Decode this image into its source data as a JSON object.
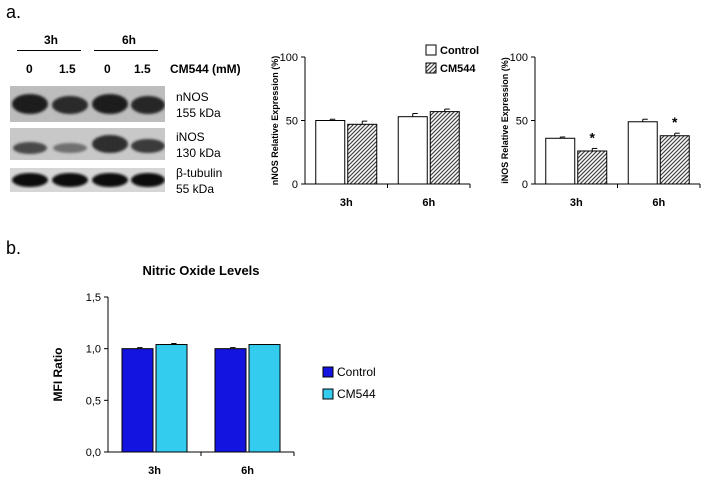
{
  "panel_a": {
    "label": "a.",
    "blot": {
      "time_groups": [
        "3h",
        "6h"
      ],
      "doses": [
        "0",
        "1.5",
        "0",
        "1.5"
      ],
      "treatment_label": "CM544 (mM)",
      "bands": [
        {
          "name": "nNOS",
          "size": "155 kDa"
        },
        {
          "name": "iNOS",
          "size": "130 kDa"
        },
        {
          "name": "β-tubulin",
          "size": "55 kDa"
        }
      ]
    }
  },
  "panel_b": {
    "label": "b."
  },
  "colors": {
    "control_white": "#ffffff",
    "cm544_hatch": "#444444",
    "control_blue": "#1414e0",
    "cm544_cyan": "#33ccee"
  },
  "chart_data": [
    {
      "type": "bar",
      "id": "nnos",
      "ylabel": "nNOS Relative Expression (%)",
      "categories": [
        "3h",
        "6h"
      ],
      "yticks": [
        "0",
        "50",
        "100"
      ],
      "ylim": [
        0,
        100
      ],
      "legend": [
        "Control",
        "CM544"
      ],
      "series": [
        {
          "name": "Control",
          "values": [
            50,
            53
          ],
          "errors": [
            1,
            2.5
          ]
        },
        {
          "name": "CM544",
          "values": [
            47,
            57
          ],
          "errors": [
            2.5,
            2
          ]
        }
      ],
      "significance": [
        "",
        ""
      ]
    },
    {
      "type": "bar",
      "id": "inos",
      "ylabel": "iNOS Relative Expression (%)",
      "categories": [
        "3h",
        "6h"
      ],
      "yticks": [
        "0",
        "50",
        "100"
      ],
      "ylim": [
        0,
        100
      ],
      "series": [
        {
          "name": "Control",
          "values": [
            36,
            49
          ],
          "errors": [
            1,
            2
          ]
        },
        {
          "name": "CM544",
          "values": [
            26,
            38
          ],
          "errors": [
            2,
            2
          ]
        }
      ],
      "significance": [
        "*",
        "*"
      ]
    },
    {
      "type": "bar",
      "id": "no",
      "title": "Nitric Oxide Levels",
      "ylabel": "MFI Ratio",
      "categories": [
        "3h",
        "6h"
      ],
      "yticks": [
        "0,0",
        "0,5",
        "1,0",
        "1,5"
      ],
      "ylim": [
        0,
        1.5
      ],
      "legend": [
        "Control",
        "CM544"
      ],
      "series": [
        {
          "name": "Control",
          "values": [
            1.0,
            1.0
          ],
          "errors": [
            0.01,
            0.01
          ]
        },
        {
          "name": "CM544",
          "values": [
            1.04,
            1.04
          ],
          "errors": [
            0.01,
            0
          ]
        }
      ]
    }
  ]
}
